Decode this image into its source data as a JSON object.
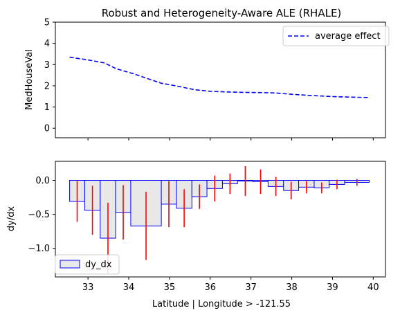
{
  "chart_data": [
    {
      "type": "line",
      "title": "Robust and Heterogeneity-Aware ALE (RHALE)",
      "xlabel": "",
      "ylabel": "MedHouseVal",
      "xlim": [
        32.2,
        40.3
      ],
      "ylim": [
        -0.45,
        5.0
      ],
      "yticks": [
        0,
        1,
        2,
        3,
        4,
        5
      ],
      "xticks": [
        33,
        34,
        35,
        36,
        37,
        38,
        39,
        40
      ],
      "x_ticklabels_shown": false,
      "legend": {
        "position": "top-right"
      },
      "series": [
        {
          "name": "average effect",
          "style": "dashed",
          "color": "#0000ff",
          "x": [
            32.55,
            33.0,
            33.4,
            33.7,
            34.1,
            34.4,
            34.8,
            35.2,
            35.6,
            36.0,
            36.4,
            36.8,
            37.2,
            37.6,
            38.0,
            38.4,
            38.8,
            39.2,
            39.6,
            39.9
          ],
          "y": [
            3.35,
            3.22,
            3.08,
            2.8,
            2.58,
            2.38,
            2.12,
            1.98,
            1.82,
            1.74,
            1.71,
            1.69,
            1.68,
            1.66,
            1.6,
            1.55,
            1.51,
            1.48,
            1.46,
            1.45
          ]
        }
      ]
    },
    {
      "type": "bar",
      "title": "",
      "xlabel": "Latitude | Longitude > -121.55",
      "ylabel": "dy/dx",
      "xlim": [
        32.2,
        40.3
      ],
      "ylim": [
        -1.42,
        0.28
      ],
      "yticks": [
        0.0,
        -0.5,
        -1.0
      ],
      "ytick_labels": [
        "0.0",
        "−0.5",
        "−1.0"
      ],
      "xticks": [
        33,
        34,
        35,
        36,
        37,
        38,
        39,
        40
      ],
      "xtick_labels": [
        "33",
        "34",
        "35",
        "36",
        "37",
        "38",
        "39",
        "40"
      ],
      "legend": {
        "position": "bottom-left"
      },
      "bar_color": "#e8e8e8",
      "bar_edge_color": "#0000ff",
      "error_color": "#ff0000",
      "series": [
        {
          "name": "dy_dx",
          "bin_edges": [
            32.55,
            32.92,
            33.3,
            33.68,
            34.05,
            34.8,
            35.17,
            35.55,
            35.92,
            36.3,
            36.67,
            37.05,
            37.42,
            37.8,
            38.17,
            38.55,
            38.92,
            39.3,
            39.9
          ],
          "values": [
            -0.31,
            -0.44,
            -0.85,
            -0.47,
            -0.67,
            -0.35,
            -0.41,
            -0.24,
            -0.12,
            -0.05,
            -0.01,
            -0.02,
            -0.09,
            -0.15,
            -0.1,
            -0.11,
            -0.06,
            -0.03
          ],
          "errors": [
            0.3,
            0.36,
            0.52,
            0.4,
            0.5,
            0.34,
            0.28,
            0.18,
            0.19,
            0.15,
            0.22,
            0.18,
            0.14,
            0.13,
            0.09,
            0.08,
            0.07,
            0.05
          ]
        }
      ]
    }
  ]
}
